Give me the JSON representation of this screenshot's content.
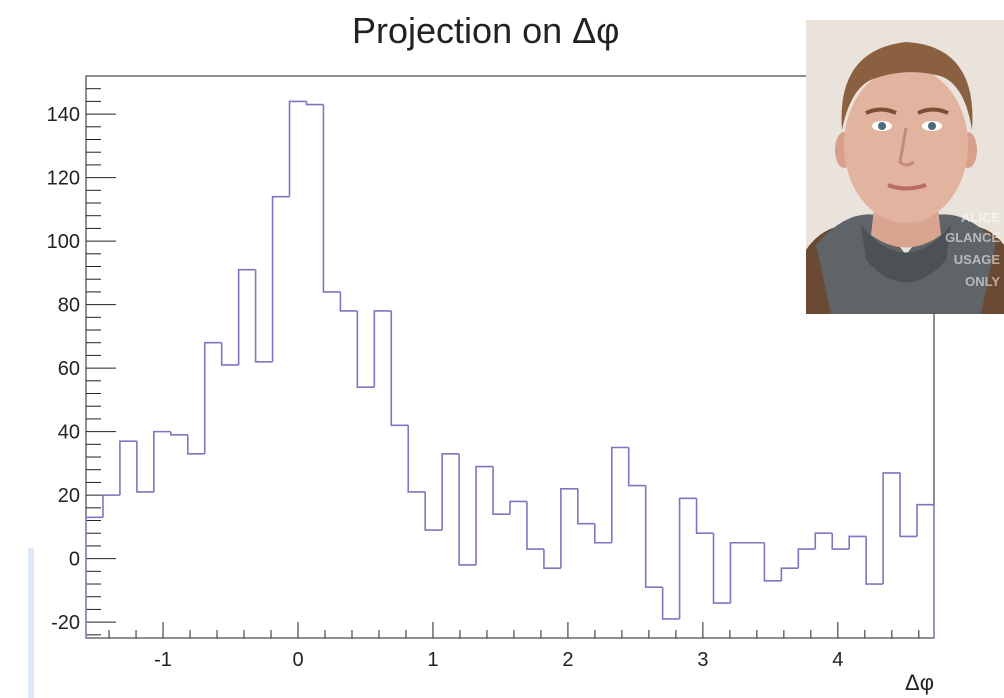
{
  "title": "Projection on Δφ",
  "chart_data": {
    "type": "histogram",
    "title": "Projection on Δφ",
    "xlabel": "Δφ",
    "ylabel": "",
    "xlim": [
      -1.5708,
      4.7124
    ],
    "ylim": [
      -25,
      152
    ],
    "xticks": [
      -1,
      0,
      1,
      2,
      3,
      4
    ],
    "yticks": [
      -20,
      0,
      20,
      40,
      60,
      80,
      100,
      120,
      140
    ],
    "bin_width": 0.1257,
    "values": [
      13,
      20,
      37,
      21,
      40,
      39,
      33,
      68,
      61,
      91,
      62,
      114,
      144,
      143,
      84,
      78,
      54,
      78,
      42,
      21,
      9,
      33,
      -2,
      29,
      14,
      18,
      3,
      -3,
      22,
      11,
      5,
      35,
      23,
      -9,
      -19,
      19,
      8,
      -14,
      5,
      5,
      -7,
      -3,
      3,
      8,
      3,
      7,
      -8,
      27,
      7,
      17
    ],
    "line_color": "#7b77c0",
    "frame_color": "#222222"
  },
  "photo": {
    "watermark": [
      "ALICE",
      "GLANCE",
      "USAGE",
      "ONLY"
    ],
    "colors": {
      "background": "#e9e3dc",
      "skin": "#e2b39f",
      "hair": "#8a6040",
      "hoodie": "#5f6468",
      "jacket": "#6a4a33"
    }
  }
}
